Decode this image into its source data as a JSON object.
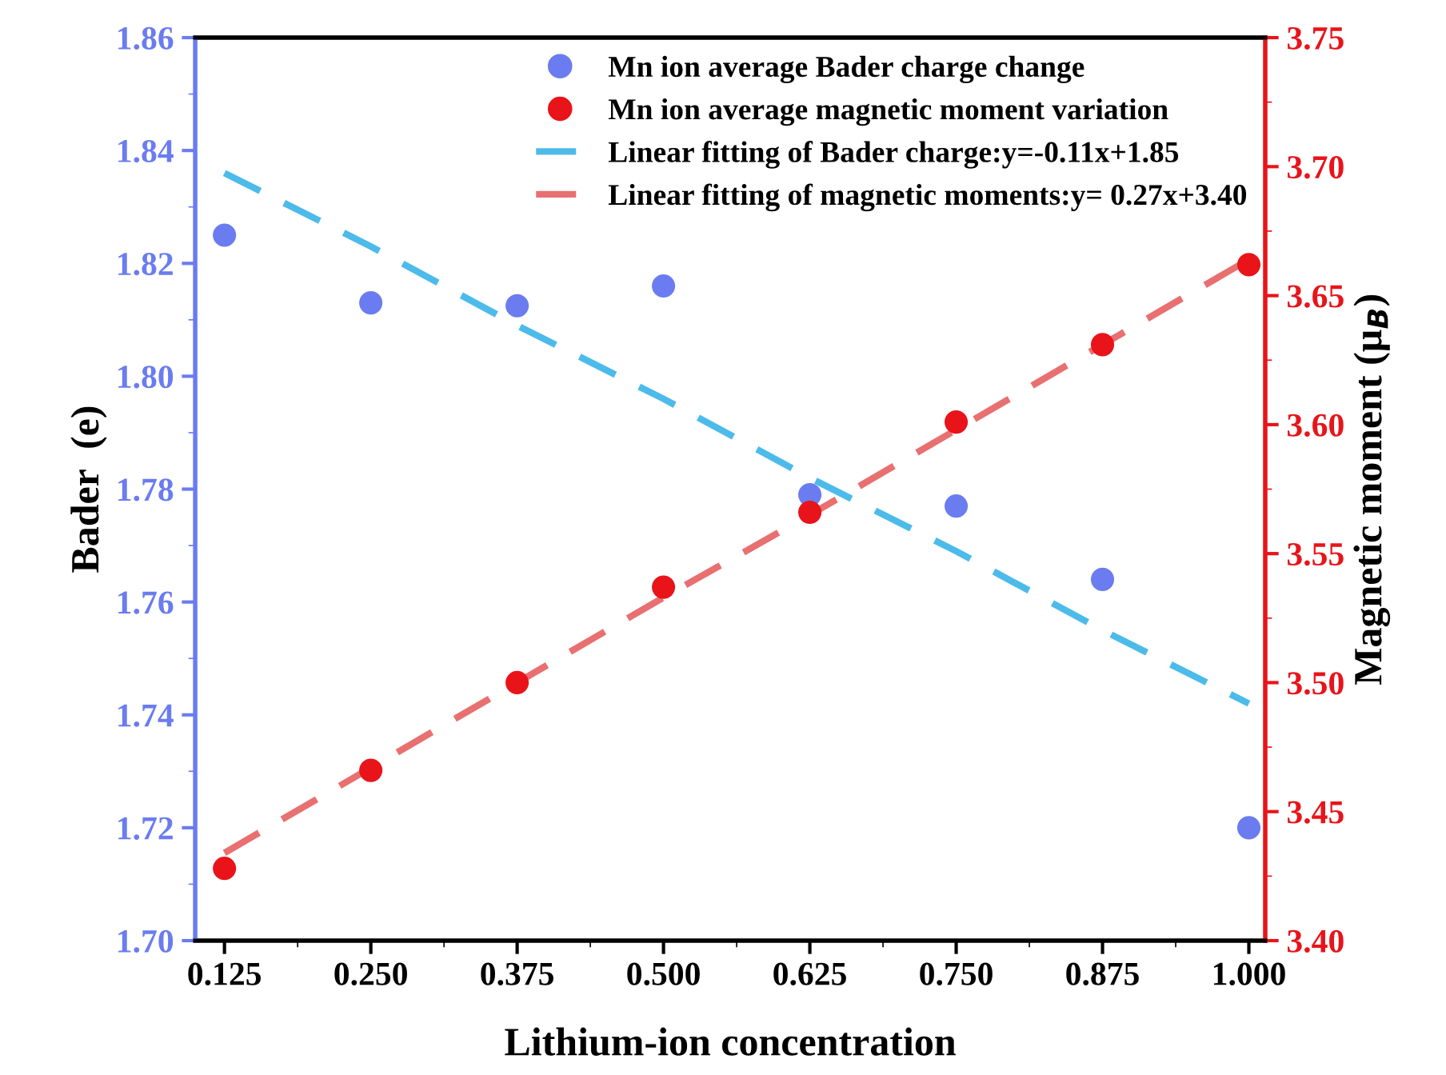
{
  "chart_data": {
    "type": "scatter",
    "xlabel": "Lithium-ion concentration",
    "ylabel": "Bader  (e)",
    "y2label": "Magnetic moment (μ$_{B}$)",
    "x": [
      0.125,
      0.25,
      0.375,
      0.5,
      0.625,
      0.75,
      0.875,
      1.0
    ],
    "series": [
      {
        "name": "Mn ion average Bader charge change",
        "color": "#6a7cf0",
        "values": [
          1.825,
          1.813,
          1.8125,
          1.816,
          1.779,
          1.777,
          1.764,
          1.72
        ]
      },
      {
        "name": "Mn ion average magnetic moment variation",
        "axis": "y2",
        "color": "#e8141a",
        "values": [
          3.428,
          3.466,
          3.5,
          3.537,
          3.566,
          3.601,
          3.631,
          3.662
        ]
      },
      {
        "name": "Linear fitting of Bader charge:y=-0.11x+1.85",
        "type": "line",
        "line_style": "dashed",
        "marker": "none",
        "color": "#4dbbea",
        "values": [
          1.836,
          1.823,
          1.809,
          1.796,
          1.782,
          1.769,
          1.755,
          1.742
        ]
      },
      {
        "name": "Linear fitting of magnetic moments:y= 0.27x+3.40",
        "type": "line",
        "axis": "y2",
        "line_style": "dashed",
        "marker": "none",
        "color": "#e87070",
        "values": [
          3.434,
          3.467,
          3.5,
          3.533,
          3.565,
          3.598,
          3.631,
          3.664
        ]
      }
    ],
    "marker": "circle",
    "xlim": [
      0.1,
      1.014
    ],
    "xticks": [
      {
        "value": 0.125,
        "label": "0.125"
      },
      {
        "value": 0.25,
        "label": "0.250"
      },
      {
        "value": 0.375,
        "label": "0.375"
      },
      {
        "value": 0.5,
        "label": "0.500"
      },
      {
        "value": 0.625,
        "label": "0.625"
      },
      {
        "value": 0.75,
        "label": "0.750"
      },
      {
        "value": 0.875,
        "label": "0.875"
      },
      {
        "value": 1.0,
        "label": "1.000"
      }
    ],
    "ylim": [
      1.7,
      1.86
    ],
    "yticks": [
      {
        "value": 1.7,
        "label": "1.70"
      },
      1.72,
      1.74,
      1.76,
      1.78,
      {
        "value": 1.8,
        "label": "1.80"
      },
      1.82,
      1.84,
      1.86
    ],
    "y2lim": [
      3.4,
      3.75
    ],
    "y2ticks": [
      {
        "value": 3.4,
        "label": "3.40"
      },
      3.45,
      {
        "value": 3.5,
        "label": "3.50"
      },
      3.55,
      {
        "value": 3.6,
        "label": "3.60"
      },
      3.65,
      {
        "value": 3.7,
        "label": "3.70"
      },
      3.75
    ],
    "grid": false,
    "legend": "top right"
  }
}
